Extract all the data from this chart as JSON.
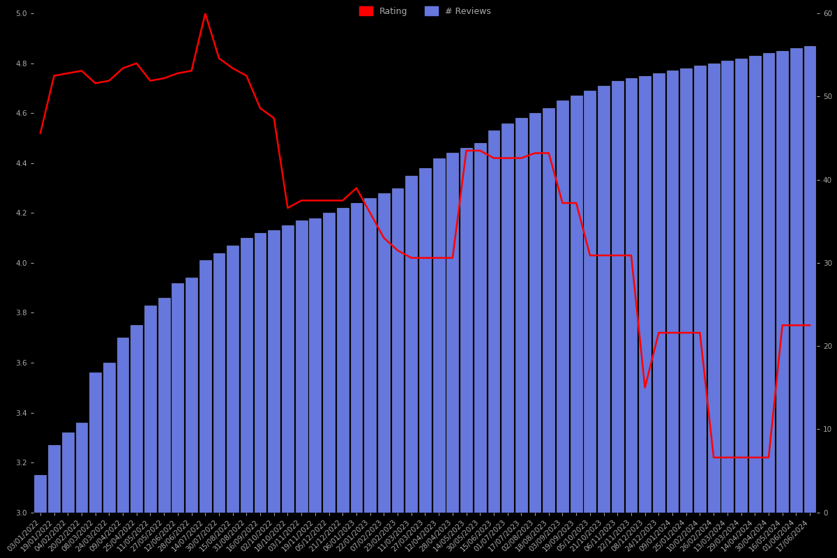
{
  "background_color": "#000000",
  "bar_color": "#6677dd",
  "bar_edge_color": "#8899ee",
  "line_color": "#ff0000",
  "left_ylim": [
    3.0,
    5.0
  ],
  "right_ylim": [
    0,
    60
  ],
  "left_yticks": [
    3.0,
    3.2,
    3.4,
    3.6,
    3.8,
    4.0,
    4.2,
    4.4,
    4.6,
    4.8,
    5.0
  ],
  "right_yticks": [
    0,
    10,
    20,
    30,
    40,
    50,
    60
  ],
  "dates": [
    "03/01/2022",
    "19/01/2022",
    "04/02/2022",
    "20/02/2022",
    "08/03/2022",
    "24/03/2022",
    "09/04/2022",
    "25/04/2022",
    "11/05/2022",
    "27/05/2022",
    "12/06/2022",
    "28/06/2022",
    "14/07/2022",
    "30/07/2022",
    "15/08/2022",
    "31/08/2022",
    "16/09/2022",
    "02/10/2022",
    "18/10/2022",
    "03/11/2022",
    "19/11/2022",
    "05/12/2022",
    "21/12/2022",
    "06/01/2023",
    "22/01/2023",
    "07/02/2023",
    "23/02/2023",
    "11/03/2023",
    "27/03/2023",
    "12/04/2023",
    "28/04/2023",
    "14/05/2023",
    "30/05/2023",
    "15/06/2023",
    "01/07/2023",
    "17/07/2023",
    "02/08/2023",
    "18/08/2023",
    "03/09/2023",
    "19/09/2023",
    "05/10/2023",
    "21/10/2023",
    "06/11/2023",
    "22/11/2023",
    "08/12/2023",
    "24/12/2023",
    "09/01/2024",
    "25/01/2024",
    "10/02/2024",
    "26/02/2024",
    "13/03/2024",
    "29/03/2024",
    "14/04/2024",
    "30/04/2024",
    "16/05/2024",
    "01/06/2024",
    "17/06/2024"
  ],
  "bar_values": [
    3.15,
    3.27,
    3.32,
    3.36,
    3.56,
    3.6,
    3.7,
    3.75,
    3.83,
    3.86,
    3.92,
    3.94,
    4.01,
    4.04,
    4.07,
    4.1,
    4.12,
    4.13,
    4.15,
    4.17,
    4.18,
    4.2,
    4.22,
    4.24,
    4.26,
    4.28,
    4.3,
    4.35,
    4.38,
    4.42,
    4.44,
    4.46,
    4.48,
    4.53,
    4.56,
    4.58,
    4.6,
    4.62,
    4.65,
    4.67,
    4.69,
    4.71,
    4.73,
    4.74,
    4.75,
    4.76,
    4.77,
    4.78,
    4.79,
    4.8,
    4.81,
    4.82,
    4.83,
    4.84,
    4.85,
    4.86,
    4.87
  ],
  "line_values": [
    4.52,
    4.75,
    4.76,
    4.77,
    4.72,
    4.73,
    4.78,
    4.8,
    4.73,
    4.74,
    4.76,
    4.77,
    5.0,
    4.82,
    4.78,
    4.75,
    4.62,
    4.58,
    4.22,
    4.25,
    4.25,
    4.25,
    4.25,
    4.3,
    4.2,
    4.1,
    4.05,
    4.02,
    4.02,
    4.02,
    4.02,
    4.45,
    4.45,
    4.42,
    4.42,
    4.42,
    4.44,
    4.44,
    4.24,
    4.24,
    4.03,
    4.03,
    4.03,
    4.03,
    3.5,
    3.72,
    3.72,
    3.72,
    3.72,
    3.22,
    3.22,
    3.22,
    3.22,
    3.22,
    3.75,
    3.75,
    3.75
  ],
  "tick_label_color": "#aaaaaa",
  "tick_label_fontsize": 7.5,
  "legend_items": [
    "Rating",
    "# Reviews"
  ],
  "legend_colors": [
    "#ff0000",
    "#6677dd"
  ]
}
